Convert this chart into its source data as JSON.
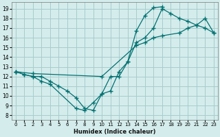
{
  "bg_color": "#d4ecec",
  "grid_color": "#a8cccc",
  "line_color": "#007070",
  "xlim": [
    -0.5,
    23.5
  ],
  "ylim": [
    7.5,
    19.7
  ],
  "xticks": [
    0,
    1,
    2,
    3,
    4,
    5,
    6,
    7,
    8,
    9,
    10,
    11,
    12,
    13,
    14,
    15,
    16,
    17,
    18,
    19,
    20,
    21,
    22,
    23
  ],
  "yticks": [
    8,
    9,
    10,
    11,
    12,
    13,
    14,
    15,
    16,
    17,
    18,
    19
  ],
  "xlabel": "Humidex (Indice chaleur)",
  "line1_x": [
    0,
    1,
    2,
    3,
    4,
    7,
    8,
    9,
    10,
    11,
    12,
    13,
    14,
    15,
    16,
    17
  ],
  "line1_y": [
    12.5,
    12.2,
    12.0,
    11.5,
    11.2,
    8.7,
    8.5,
    9.3,
    10.2,
    12.0,
    12.0,
    13.5,
    16.7,
    18.3,
    19.1,
    19.2
  ],
  "line2_x": [
    0,
    1,
    2,
    3,
    4,
    5,
    6,
    7,
    8,
    9,
    10,
    11,
    12,
    13,
    14,
    15,
    16,
    17,
    18,
    19,
    20,
    21,
    22,
    23
  ],
  "line2_y": [
    12.5,
    12.2,
    12.0,
    12.0,
    11.5,
    11.0,
    10.5,
    9.8,
    8.7,
    8.5,
    10.2,
    10.5,
    12.5,
    13.5,
    15.5,
    16.0,
    17.0,
    19.0,
    18.5,
    18.0,
    17.7,
    17.3,
    17.0,
    16.5
  ],
  "line3_x": [
    0,
    2,
    10,
    14,
    15,
    16,
    17,
    19,
    20,
    21,
    22,
    23
  ],
  "line3_y": [
    12.5,
    12.3,
    12.0,
    15.2,
    15.5,
    16.0,
    16.2,
    16.5,
    17.0,
    17.3,
    18.0,
    16.5
  ]
}
